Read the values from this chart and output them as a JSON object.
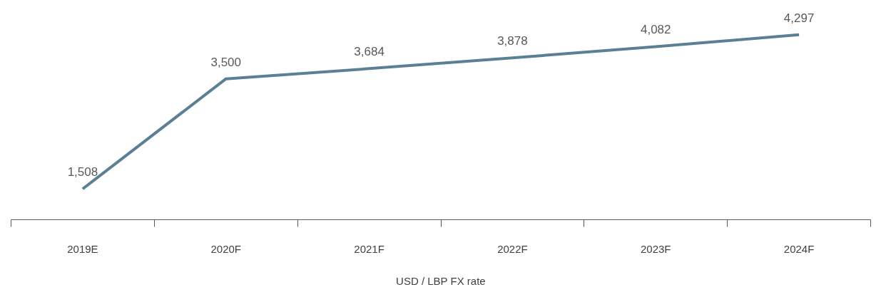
{
  "chart_data": {
    "type": "line",
    "xlabel": "USD / LBP FX rate",
    "categories": [
      "2019E",
      "2020F",
      "2021F",
      "2022F",
      "2023F",
      "2024F"
    ],
    "series": [
      {
        "color": "#5b7f95",
        "values": [
          1508,
          3500,
          3684,
          3878,
          4082,
          4297
        ],
        "value_labels": [
          "1,508",
          "3,500",
          "3,684",
          "3,878",
          "4,082",
          "4,297"
        ]
      }
    ],
    "grid": false,
    "tick_labels": "x",
    "marker": "none",
    "line_style": "solid"
  }
}
